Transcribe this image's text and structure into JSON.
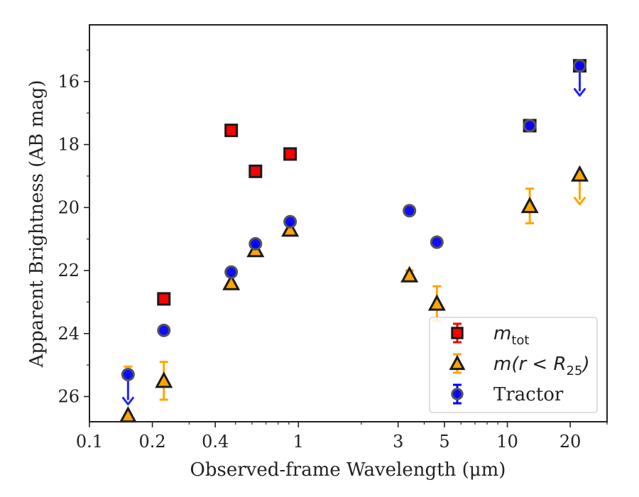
{
  "chart_data": {
    "type": "scatter",
    "xlabel": "Observed-frame Wavelength (μm)",
    "ylabel": "Apparent Brightness (AB mag)",
    "xscale": "log",
    "xlim": [
      0.1,
      30
    ],
    "ylim": [
      26.8,
      14.2
    ],
    "y_inverted": true,
    "x_ticks": [
      {
        "value": 0.1,
        "label": "0.1"
      },
      {
        "value": 0.2,
        "label": "0.2"
      },
      {
        "value": 0.4,
        "label": "0.4"
      },
      {
        "value": 1,
        "label": "1"
      },
      {
        "value": 3,
        "label": "3"
      },
      {
        "value": 5,
        "label": "5"
      },
      {
        "value": 10,
        "label": "10"
      },
      {
        "value": 20,
        "label": "20"
      }
    ],
    "y_ticks": [
      16,
      18,
      20,
      22,
      24,
      26
    ],
    "grid": false,
    "legend_position": "lower-right",
    "series": [
      {
        "name": "m_tot",
        "legend_parts": {
          "main": "m",
          "sub": "tot"
        },
        "marker": "square",
        "color": "#ff0000",
        "edge": "#1a1a1a",
        "points": [
          {
            "x": 0.227,
            "y": 22.9
          },
          {
            "x": 0.477,
            "y": 17.55
          },
          {
            "x": 0.623,
            "y": 18.85
          },
          {
            "x": 0.913,
            "y": 18.3
          },
          {
            "x": 12.8,
            "y": 17.4
          },
          {
            "x": 22.2,
            "y": 15.5
          }
        ]
      },
      {
        "name": "m(r < R25)",
        "legend_parts": {
          "main": "m(r < R",
          "sub": "25",
          "tail": ")"
        },
        "marker": "triangle",
        "color": "#ffa500",
        "edge": "#1a1a1a",
        "points": [
          {
            "x": 0.153,
            "y": 26.6,
            "err": 0
          },
          {
            "x": 0.227,
            "y": 25.5,
            "err": 0.6
          },
          {
            "x": 0.477,
            "y": 22.4,
            "err": 0
          },
          {
            "x": 0.623,
            "y": 21.35,
            "err": 0
          },
          {
            "x": 0.913,
            "y": 20.7,
            "err": 0
          },
          {
            "x": 3.4,
            "y": 22.15,
            "err": 0.15
          },
          {
            "x": 4.6,
            "y": 23.05,
            "err": 0.55
          },
          {
            "x": 12.8,
            "y": 19.95,
            "err": 0.55
          },
          {
            "x": 22.2,
            "y": 18.95,
            "err": 0
          }
        ]
      },
      {
        "name": "Tractor",
        "marker": "circle",
        "color": "#0000ff",
        "edge": "#555555",
        "points": [
          {
            "x": 0.153,
            "y": 25.3
          },
          {
            "x": 0.227,
            "y": 23.9
          },
          {
            "x": 0.477,
            "y": 22.05
          },
          {
            "x": 0.623,
            "y": 21.15
          },
          {
            "x": 0.913,
            "y": 20.45
          },
          {
            "x": 3.4,
            "y": 20.1
          },
          {
            "x": 4.6,
            "y": 21.1
          },
          {
            "x": 12.8,
            "y": 17.4
          },
          {
            "x": 22.2,
            "y": 15.5
          }
        ]
      }
    ],
    "upper_limits": [
      {
        "series": "Tractor",
        "x": 0.153,
        "y_from": 25.3,
        "y_to": 26.2,
        "color": "#2222ff"
      },
      {
        "series": "m(r < R25)",
        "x": 0.153,
        "y_from": 25.05,
        "y_to": 25.05,
        "color": "#ffa500",
        "cap_only": true
      },
      {
        "series": "m(r < R25)",
        "x": 22.2,
        "y_from": 18.95,
        "y_to": 19.85,
        "color": "#ffa500"
      },
      {
        "series": "Tractor",
        "x": 22.2,
        "y_from": 15.5,
        "y_to": 16.4,
        "color": "#2222ff"
      }
    ]
  }
}
